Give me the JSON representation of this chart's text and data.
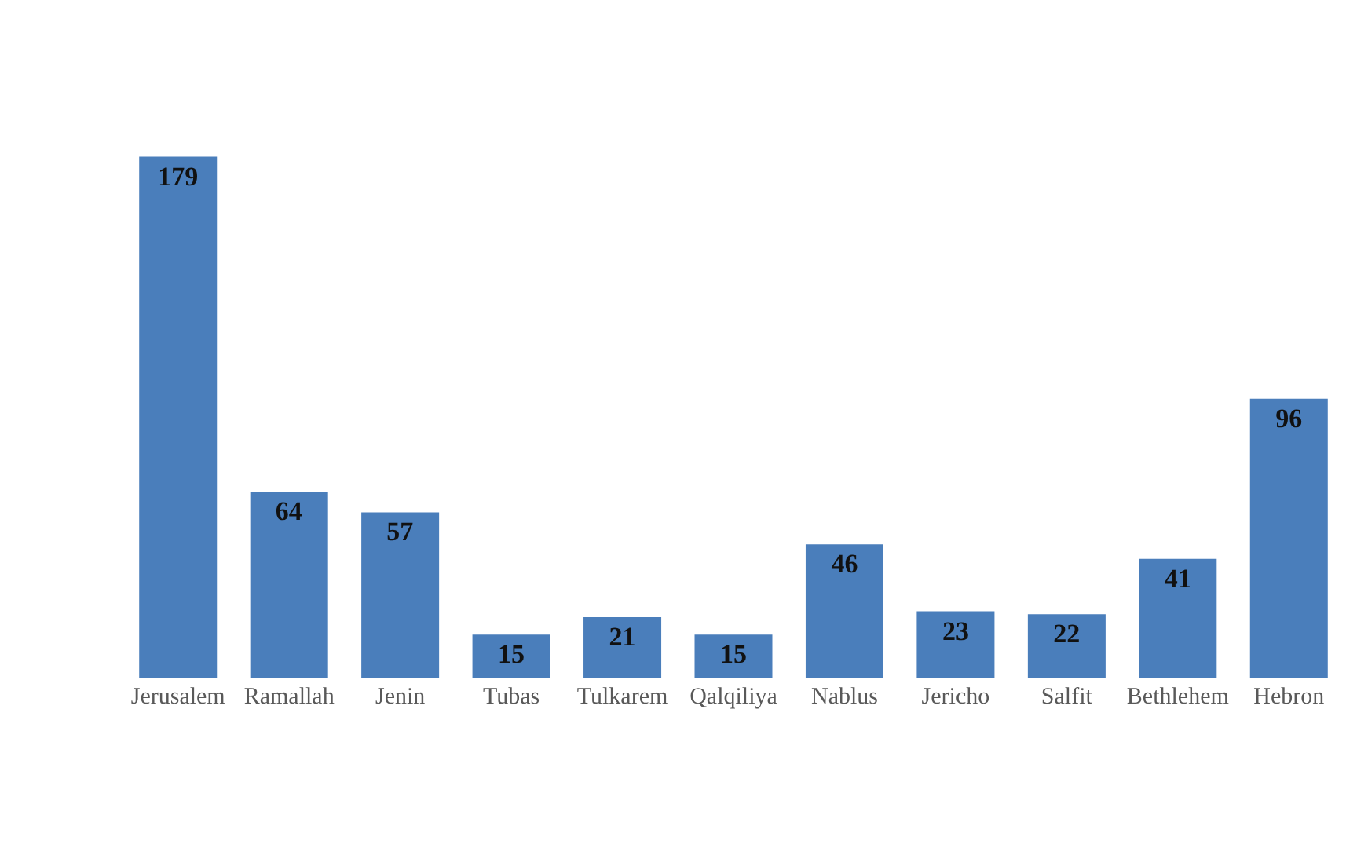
{
  "chart_data": {
    "type": "bar",
    "categories": [
      "Jerusalem",
      "Ramallah",
      "Jenin",
      "Tubas",
      "Tulkarem",
      "Qalqiliya",
      "Nablus",
      "Jericho",
      "Salfit",
      "Bethlehem",
      "Hebron"
    ],
    "values": [
      179,
      64,
      57,
      15,
      21,
      15,
      46,
      23,
      22,
      41,
      96
    ],
    "color": "#4a7ebb",
    "data_labels": true
  }
}
